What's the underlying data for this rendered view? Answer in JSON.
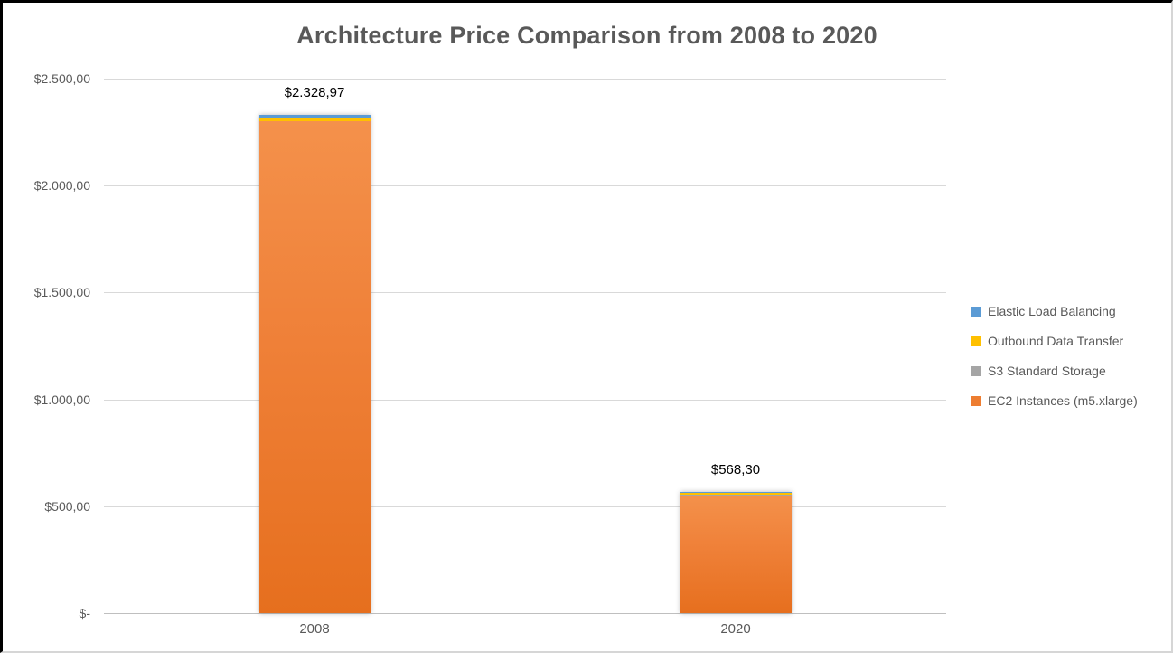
{
  "chart_data": {
    "type": "bar",
    "stacked": true,
    "title": "Architecture Price Comparison from 2008 to 2020",
    "categories": [
      "2008",
      "2020"
    ],
    "series": [
      {
        "name": "EC2 Instances (m5.xlarge)",
        "color": "#ED7D31",
        "values": [
          2298.97,
          552.0
        ]
      },
      {
        "name": "S3 Standard Storage",
        "color": "#A5A5A5",
        "values": [
          4.0,
          3.5
        ]
      },
      {
        "name": "Outbound Data Transfer",
        "color": "#FFC000",
        "values": [
          15.0,
          5.5
        ]
      },
      {
        "name": "Elastic Load Balancing",
        "color": "#5B9BD5",
        "values": [
          11.0,
          7.3
        ]
      }
    ],
    "totals": [
      2328.97,
      568.3
    ],
    "total_labels": [
      "$2.328,97",
      "$568,30"
    ],
    "x_labels": [
      "2008",
      "2020"
    ],
    "y_ticks": [
      {
        "value": 0,
        "label": "$-"
      },
      {
        "value": 500,
        "label": "$500,00"
      },
      {
        "value": 1000,
        "label": "$1.000,00"
      },
      {
        "value": 1500,
        "label": "$1.500,00"
      },
      {
        "value": 2000,
        "label": "$2.000,00"
      },
      {
        "value": 2500,
        "label": "$2.500,00"
      }
    ],
    "ylim": [
      0,
      2500
    ],
    "grid": true,
    "legend_position": "right",
    "legend": [
      {
        "label": "Elastic Load Balancing",
        "color": "#5B9BD5"
      },
      {
        "label": "Outbound Data Transfer",
        "color": "#FFC000"
      },
      {
        "label": "S3 Standard Storage",
        "color": "#A5A5A5"
      },
      {
        "label": "EC2 Instances (m5.xlarge)",
        "color": "#ED7D31"
      }
    ]
  },
  "colors": {
    "title_text": "#595959",
    "axis_text": "#595959",
    "data_label_text": "#000000",
    "gridline": "#D9D9D9",
    "axis_line": "#BFBFBF",
    "background": "#FFFFFF"
  }
}
